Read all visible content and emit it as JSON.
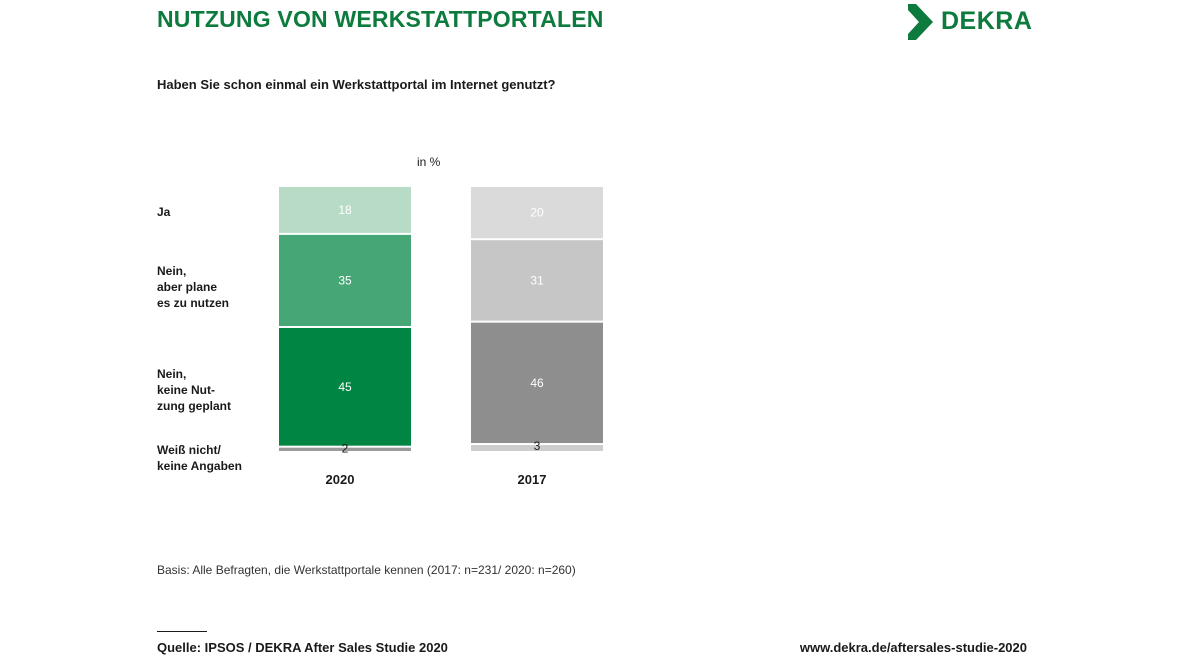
{
  "header": {
    "title": "NUTZUNG VON WERKSTATTPORTALEN",
    "logo_text": "DEKRA",
    "brand_color": "#0d7a3e"
  },
  "chart_data": {
    "type": "bar",
    "stacked": true,
    "title": "",
    "question": "Haben Sie schon einmal ein Werkstattportal im Internet genutzt?",
    "unit_label": "in %",
    "categories": [
      "2020",
      "2017"
    ],
    "segment_labels": [
      "Ja",
      "Nein,\naber plane\nes zu nutzen",
      "Nein,\nkeine Nut-\nzung geplant",
      "Weiß nicht/\nkeine Angaben"
    ],
    "series": [
      {
        "name": "Ja",
        "values": [
          18,
          20
        ]
      },
      {
        "name": "Nein, aber plane es zu nutzen",
        "values": [
          35,
          31
        ]
      },
      {
        "name": "Nein, keine Nutzung geplant",
        "values": [
          45,
          46
        ]
      },
      {
        "name": "Weiß nicht/ keine Angaben",
        "values": [
          2,
          3
        ]
      }
    ],
    "colors": {
      "2020": [
        "#b8dbc5",
        "#46a676",
        "#008542",
        "#9a9a9a"
      ],
      "2017": [
        "#dadada",
        "#c6c6c6",
        "#8e8e8e",
        "#cdcdcd"
      ]
    },
    "label_colors": {
      "2020": [
        "#ffffff",
        "#ffffff",
        "#ffffff",
        "#1a1a1a"
      ],
      "2017": [
        "#ffffff",
        "#ffffff",
        "#ffffff",
        "#1a1a1a"
      ]
    },
    "ylim": [
      0,
      100
    ]
  },
  "footer": {
    "basis": "Basis: Alle Befragten, die Werkstattportale kennen (2017: n=231/ 2020: n=260)",
    "source": "Quelle: IPSOS / DEKRA After Sales Studie 2020",
    "url": "www.dekra.de/aftersales-studie-2020"
  }
}
